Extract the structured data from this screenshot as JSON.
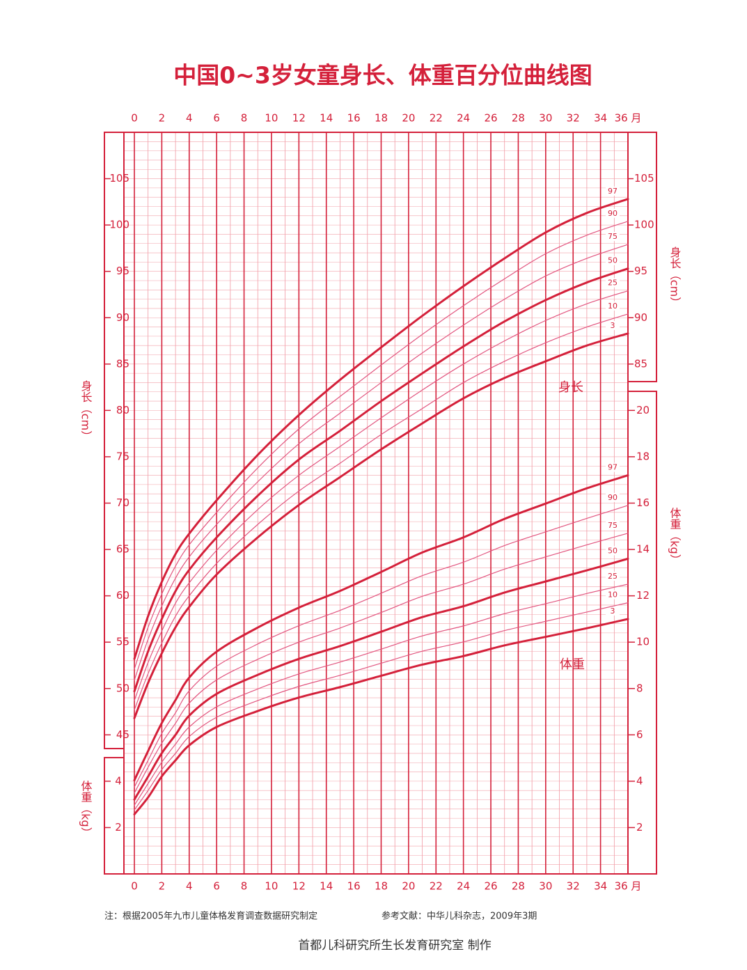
{
  "chart_data": {
    "type": "line",
    "title": "中国0~3岁女童身长、体重百分位曲线图",
    "x": [
      0,
      1,
      2,
      3,
      4,
      6,
      9,
      12,
      15,
      18,
      21,
      24,
      27,
      30,
      33,
      36
    ],
    "xlim": [
      0,
      36
    ],
    "xticks": [
      0,
      2,
      4,
      6,
      8,
      10,
      12,
      14,
      16,
      18,
      20,
      22,
      24,
      26,
      28,
      30,
      32,
      34,
      {
        "value": 36,
        "label": "36 月"
      }
    ],
    "ylim": [
      30,
      110
    ],
    "yticks": [
      45,
      50,
      55,
      60,
      65,
      70,
      75,
      80,
      85,
      90,
      95,
      100,
      105
    ],
    "yticks_right": [
      85,
      90,
      95,
      100,
      105
    ],
    "y_label": "身长（cm）",
    "y2lim": [
      0,
      32
    ],
    "y2ticks": [
      2,
      4,
      6,
      8,
      10,
      12,
      14,
      16,
      18,
      20
    ],
    "y2ticks_left": [
      2,
      4
    ],
    "y2_label": "体重（kg）",
    "grid": true,
    "grid_step_x": 1,
    "grid_step_y": 1,
    "annotations": [
      {
        "text": "身长"
      },
      {
        "text": "体重"
      }
    ],
    "series": [
      {
        "name": "3",
        "axis": "y",
        "bold": true,
        "color": "#d4203a",
        "values": [
          46.8,
          50.6,
          53.8,
          56.6,
          58.8,
          62.3,
          66.3,
          69.8,
          72.8,
          75.8,
          78.6,
          81.3,
          83.5,
          85.3,
          87.0,
          88.3
        ]
      },
      {
        "name": "10",
        "axis": "y",
        "bold": false,
        "color": "#e2557f",
        "values": [
          47.7,
          51.6,
          54.9,
          57.8,
          60.0,
          63.5,
          67.7,
          71.3,
          74.3,
          77.4,
          80.2,
          83.0,
          85.3,
          87.3,
          89.0,
          90.4
        ]
      },
      {
        "name": "25",
        "axis": "y",
        "bold": false,
        "color": "#e2557f",
        "values": [
          48.7,
          52.8,
          56.2,
          59.2,
          61.4,
          64.9,
          69.3,
          73.0,
          76.1,
          79.2,
          82.2,
          85.0,
          87.5,
          89.7,
          91.5,
          92.9
        ]
      },
      {
        "name": "50",
        "axis": "y",
        "bold": true,
        "color": "#d4203a",
        "values": [
          49.7,
          54.0,
          57.5,
          60.5,
          62.8,
          66.3,
          70.8,
          74.7,
          77.8,
          81.0,
          84.0,
          86.9,
          89.6,
          91.9,
          93.8,
          95.3
        ]
      },
      {
        "name": "75",
        "axis": "y",
        "bold": false,
        "color": "#e2557f",
        "values": [
          50.9,
          55.3,
          58.9,
          61.9,
          64.2,
          67.7,
          72.3,
          76.4,
          79.7,
          83.0,
          86.2,
          89.2,
          92.0,
          94.5,
          96.4,
          97.9
        ]
      },
      {
        "name": "90",
        "axis": "y",
        "bold": false,
        "color": "#e2557f",
        "values": [
          52.1,
          56.6,
          60.2,
          63.2,
          65.5,
          69.0,
          73.8,
          78.0,
          81.5,
          84.9,
          88.2,
          91.3,
          94.2,
          96.9,
          98.9,
          100.4
        ]
      },
      {
        "name": "97",
        "axis": "y",
        "bold": true,
        "color": "#d4203a",
        "values": [
          53.2,
          57.8,
          61.5,
          64.5,
          66.7,
          70.3,
          75.2,
          79.5,
          83.3,
          86.8,
          90.2,
          93.4,
          96.4,
          99.2,
          101.3,
          102.8
        ]
      },
      {
        "name": "3",
        "axis": "y2",
        "bold": true,
        "color": "#d4203a",
        "values": [
          2.57,
          3.3,
          4.21,
          4.9,
          5.55,
          6.34,
          7.03,
          7.61,
          8.06,
          8.55,
          9.03,
          9.4,
          9.86,
          10.23,
          10.6,
          11.0
        ]
      },
      {
        "name": "10",
        "axis": "y2",
        "bold": false,
        "color": "#e2557f",
        "values": [
          2.76,
          3.6,
          4.5,
          5.2,
          5.93,
          6.76,
          7.48,
          8.09,
          8.57,
          9.09,
          9.61,
          10.01,
          10.5,
          10.9,
          11.3,
          11.7
        ]
      },
      {
        "name": "25",
        "axis": "y2",
        "bold": false,
        "color": "#e2557f",
        "values": [
          2.96,
          3.9,
          4.82,
          5.6,
          6.34,
          7.21,
          7.98,
          8.63,
          9.14,
          9.7,
          10.27,
          10.7,
          11.23,
          11.66,
          12.1,
          12.5
        ]
      },
      {
        "name": "50",
        "axis": "y2",
        "bold": true,
        "color": "#d4203a",
        "values": [
          3.21,
          4.2,
          5.21,
          6.0,
          6.83,
          7.77,
          8.59,
          9.28,
          9.83,
          10.45,
          11.08,
          11.55,
          12.14,
          12.62,
          13.1,
          13.6
        ]
      },
      {
        "name": "75",
        "axis": "y2",
        "bold": false,
        "color": "#e2557f",
        "values": [
          3.49,
          4.6,
          5.64,
          6.5,
          7.37,
          8.37,
          9.26,
          10.0,
          10.61,
          11.28,
          11.98,
          12.5,
          13.15,
          13.68,
          14.2,
          14.7
        ]
      },
      {
        "name": "90",
        "axis": "y2",
        "bold": false,
        "color": "#e2557f",
        "values": [
          3.75,
          4.9,
          6.06,
          6.95,
          7.9,
          8.96,
          9.92,
          10.71,
          11.37,
          12.11,
          12.87,
          13.45,
          14.17,
          14.76,
          15.34,
          15.9
        ]
      },
      {
        "name": "97",
        "axis": "y2",
        "bold": true,
        "color": "#d4203a",
        "values": [
          4.04,
          5.3,
          6.51,
          7.5,
          8.47,
          9.59,
          10.63,
          11.49,
          12.21,
          13.03,
          13.87,
          14.52,
          15.32,
          15.98,
          16.64,
          17.2
        ]
      }
    ]
  },
  "footer": {
    "note": "注：根据2005年九市儿童体格发育调查数据研究制定",
    "reference": "参考文献：中华儿科杂志，2009年3期",
    "credit": "首都儿科研究所生长发育研究室 制作"
  }
}
